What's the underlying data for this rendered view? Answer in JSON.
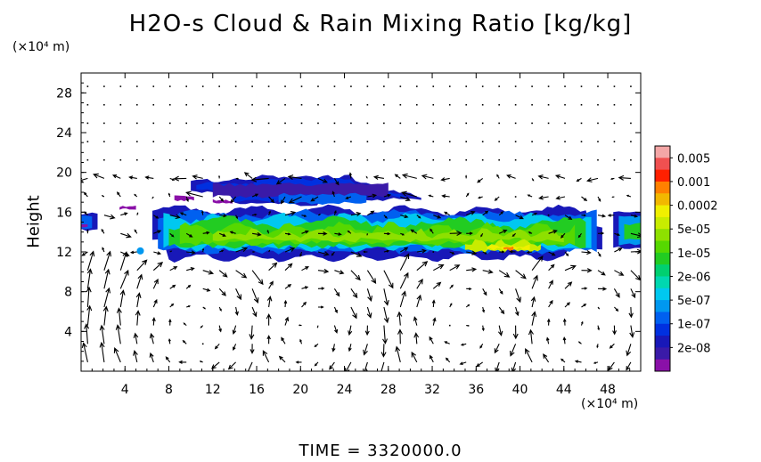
{
  "chart_data": {
    "type": "heatmap",
    "title": "H2O-s Cloud & Rain Mixing Ratio [kg/kg]",
    "ylabel": "Height",
    "y_unit": "(×10⁴ m)",
    "x_unit": "(×10⁴ m)",
    "xlim": [
      0,
      51
    ],
    "ylim": [
      0,
      30
    ],
    "x_ticks": [
      4,
      8,
      12,
      16,
      20,
      24,
      28,
      32,
      36,
      40,
      44,
      48
    ],
    "y_ticks": [
      4,
      8,
      12,
      16,
      20,
      24,
      28
    ],
    "colorbar": {
      "labels": [
        "0.005",
        "0.001",
        "0.0002",
        "5e-05",
        "1e-05",
        "2e-06",
        "5e-07",
        "1e-07",
        "2e-08"
      ],
      "colors_top_to_bottom": [
        "#f4a6a6",
        "#f05050",
        "#ff2000",
        "#ff8000",
        "#f2b800",
        "#f0f000",
        "#c8ec00",
        "#8ee000",
        "#56d800",
        "#22cc22",
        "#00d070",
        "#00d8b0",
        "#00c8f0",
        "#0098f0",
        "#0060f0",
        "#0030e0",
        "#1818b8",
        "#3a1aa8",
        "#8a10a8"
      ]
    },
    "cloud_layers": [
      {
        "name_note": "lower layer",
        "x": [
          0,
          51
        ],
        "y": [
          11,
          17
        ]
      },
      {
        "name_note": "upper layer",
        "x": [
          10,
          33
        ],
        "y": [
          16,
          20
        ]
      }
    ],
    "time_label": "TIME = 3320000.0"
  }
}
